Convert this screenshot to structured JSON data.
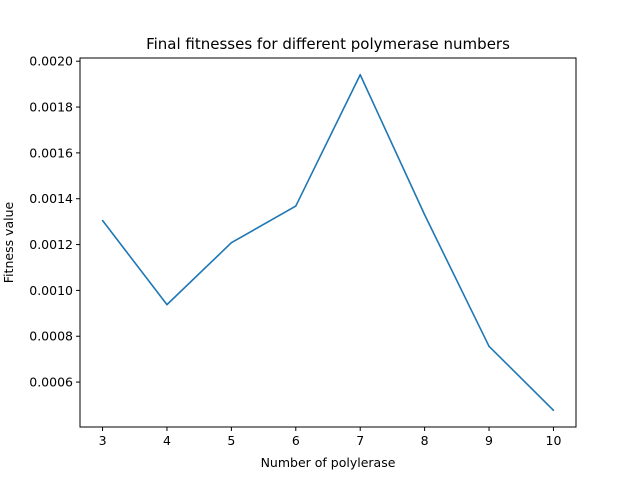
{
  "chart_data": {
    "type": "line",
    "title": "Final fitnesses for different polymerase numbers",
    "xlabel": "Number of polylerase",
    "ylabel": "Fitness value",
    "x": [
      3,
      4,
      5,
      6,
      7,
      8,
      9,
      10
    ],
    "series": [
      {
        "values": [
          0.001305,
          0.000938,
          0.001208,
          0.001368,
          0.001941,
          0.00133,
          0.000756,
          0.000477
        ],
        "color": "#1f77b4"
      }
    ],
    "xlim": [
      2.65,
      10.35
    ],
    "ylim": [
      0.000404,
      0.002014
    ],
    "xticks": [
      3,
      4,
      5,
      6,
      7,
      8,
      9,
      10
    ],
    "yticks": [
      0.0006,
      0.0008,
      0.001,
      0.0012,
      0.0014,
      0.0016,
      0.0018,
      0.002
    ],
    "ytick_labels": [
      "0.0006",
      "0.0008",
      "0.0010",
      "0.0012",
      "0.0014",
      "0.0016",
      "0.0018",
      "0.0020"
    ],
    "grid": false
  }
}
